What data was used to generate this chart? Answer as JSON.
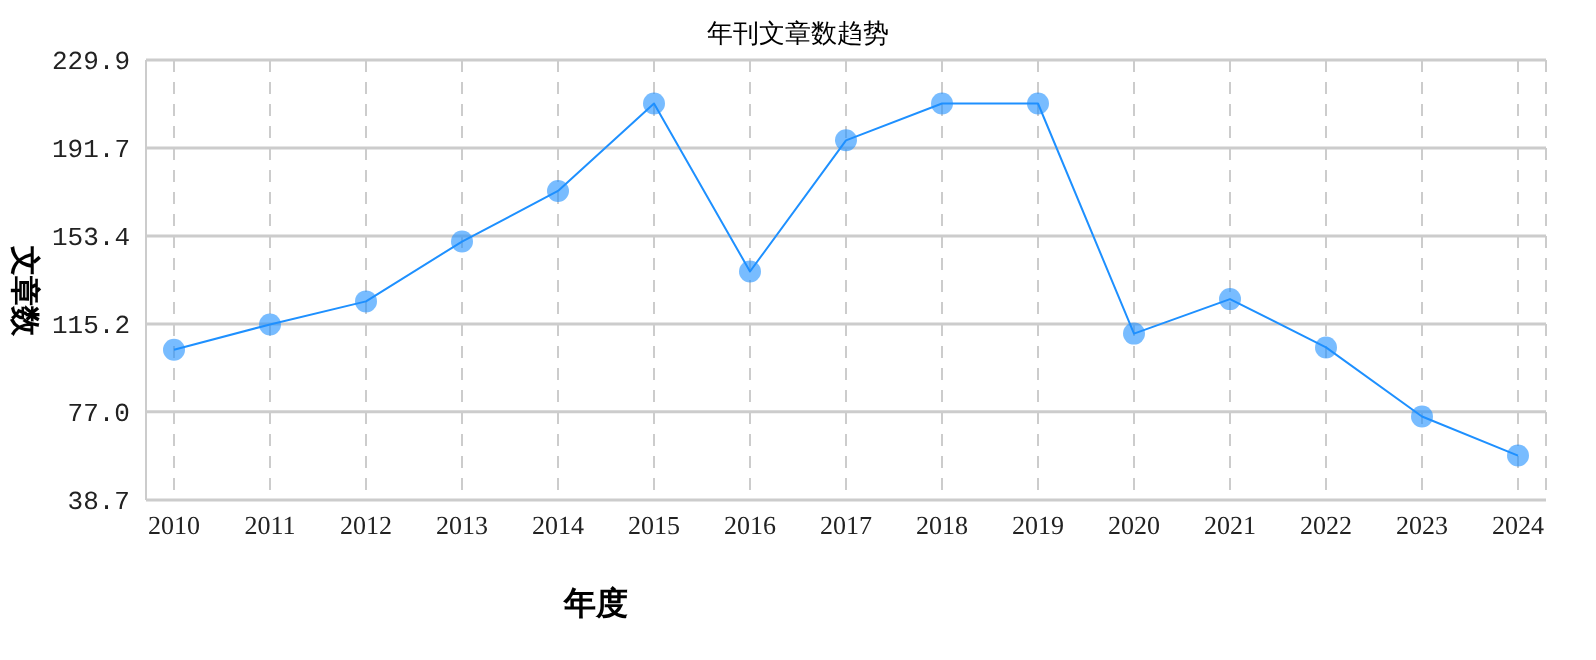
{
  "chart_data": {
    "type": "line",
    "title": "年刊文章数趋势",
    "xlabel": "年度",
    "ylabel": "文章数",
    "categories": [
      "2010",
      "2011",
      "2012",
      "2013",
      "2014",
      "2015",
      "2016",
      "2017",
      "2018",
      "2019",
      "2020",
      "2021",
      "2022",
      "2023",
      "2024"
    ],
    "series": [
      {
        "color": "#1e90ff",
        "values": [
          104,
          115,
          125,
          151,
          173,
          211,
          138,
          195,
          211,
          211,
          111,
          126,
          105,
          75,
          58
        ]
      }
    ],
    "ylim": [
      38.7,
      229.9
    ],
    "yticks": [
      {
        "value": 38.7,
        "label": "38.7"
      },
      {
        "value": 77,
        "label": "77.0"
      },
      {
        "value": 115.2,
        "label": "115.2"
      },
      {
        "value": 153.4,
        "label": "153.4"
      },
      {
        "value": 191.7,
        "label": "191.7"
      },
      {
        "value": 229.9,
        "label": "229.9"
      }
    ],
    "grid": true,
    "marker": "circle",
    "line_style": "solid",
    "legend": false
  }
}
